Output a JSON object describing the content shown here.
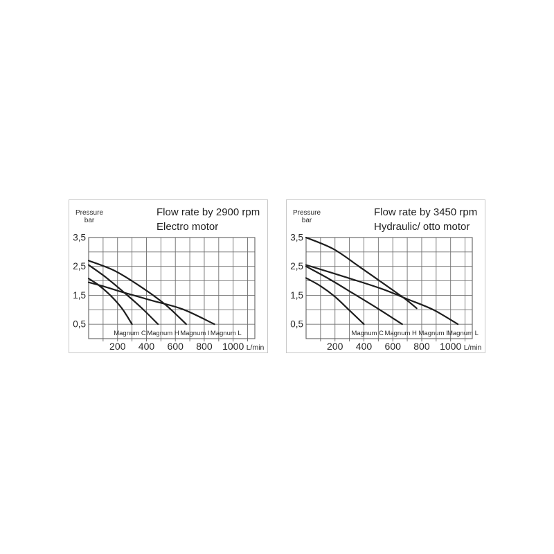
{
  "page": {
    "background_color": "#ffffff",
    "description": "Two pump flow-rate performance charts"
  },
  "colors": {
    "curve": "#1e1e1e",
    "grid": "#6f6f6f",
    "plot_border": "#5f5f5f",
    "box_border": "#c8c8c8",
    "text": "#262626"
  },
  "chart_data": [
    {
      "type": "line",
      "title": "Flow rate by 2900 rpm",
      "subtitle": "Electro motor",
      "ylabel_line1": "Pressure",
      "ylabel_line2": "bar",
      "x_unit": "L/min",
      "xlim": [
        0,
        1150
      ],
      "ylim": [
        0,
        3.5
      ],
      "grid": true,
      "x_grid_step": 100,
      "y_grid_step": 0.5,
      "legend_position": "inside-bottom",
      "x_ticks": [
        200,
        400,
        600,
        800,
        1000
      ],
      "y_ticks": [
        {
          "value": 3.5,
          "label": "3,5"
        },
        {
          "value": 2.5,
          "label": "2,5"
        },
        {
          "value": 1.5,
          "label": "1,5"
        },
        {
          "value": 0.5,
          "label": "0,5"
        }
      ],
      "series": [
        {
          "name": "Magnum C",
          "label_x": 285,
          "points": [
            [
              0,
              2.08
            ],
            [
              70,
              1.85
            ],
            [
              150,
              1.5
            ],
            [
              230,
              1.05
            ],
            [
              300,
              0.5
            ]
          ]
        },
        {
          "name": "Magnum H",
          "label_x": 515,
          "points": [
            [
              0,
              2.55
            ],
            [
              120,
              2.12
            ],
            [
              240,
              1.62
            ],
            [
              365,
              1.07
            ],
            [
              480,
              0.5
            ]
          ]
        },
        {
          "name": "Magnum I",
          "label_x": 735,
          "points": [
            [
              0,
              2.7
            ],
            [
              180,
              2.35
            ],
            [
              360,
              1.8
            ],
            [
              530,
              1.18
            ],
            [
              675,
              0.5
            ]
          ]
        },
        {
          "name": "Magnum L",
          "label_x": 950,
          "points": [
            [
              0,
              1.95
            ],
            [
              110,
              1.8
            ],
            [
              220,
              1.63
            ],
            [
              430,
              1.33
            ],
            [
              650,
              1.02
            ],
            [
              870,
              0.5
            ]
          ]
        }
      ]
    },
    {
      "type": "line",
      "title": "Flow rate by 3450 rpm",
      "subtitle": "Hydraulic/ otto motor",
      "ylabel_line1": "Pressure",
      "ylabel_line2": "bar",
      "x_unit": "L/min",
      "xlim": [
        0,
        1150
      ],
      "ylim": [
        0,
        3.5
      ],
      "grid": true,
      "x_grid_step": 100,
      "y_grid_step": 0.5,
      "legend_position": "inside-bottom",
      "x_ticks": [
        200,
        400,
        600,
        800,
        1000
      ],
      "y_ticks": [
        {
          "value": 3.5,
          "label": "3,5"
        },
        {
          "value": 2.5,
          "label": "2,5"
        },
        {
          "value": 1.5,
          "label": "1,5"
        },
        {
          "value": 0.5,
          "label": "0,5"
        }
      ],
      "series": [
        {
          "name": "Magnum C",
          "label_x": 425,
          "points": [
            [
              0,
              2.1
            ],
            [
              100,
              1.82
            ],
            [
              200,
              1.45
            ],
            [
              300,
              0.98
            ],
            [
              400,
              0.5
            ]
          ]
        },
        {
          "name": "Magnum H",
          "label_x": 655,
          "points": [
            [
              0,
              2.5
            ],
            [
              165,
              2.05
            ],
            [
              330,
              1.55
            ],
            [
              500,
              1.03
            ],
            [
              665,
              0.5
            ]
          ]
        },
        {
          "name": "Magnum I",
          "label_x": 880,
          "points": [
            [
              0,
              3.5
            ],
            [
              190,
              3.1
            ],
            [
              380,
              2.45
            ],
            [
              580,
              1.75
            ],
            [
              700,
              1.32
            ],
            [
              765,
              1.05
            ]
          ]
        },
        {
          "name": "Magnum L",
          "label_x": 1085,
          "points": [
            [
              0,
              2.55
            ],
            [
              260,
              2.15
            ],
            [
              520,
              1.73
            ],
            [
              700,
              1.37
            ],
            [
              880,
              1.0
            ],
            [
              1050,
              0.5
            ]
          ]
        }
      ]
    }
  ]
}
